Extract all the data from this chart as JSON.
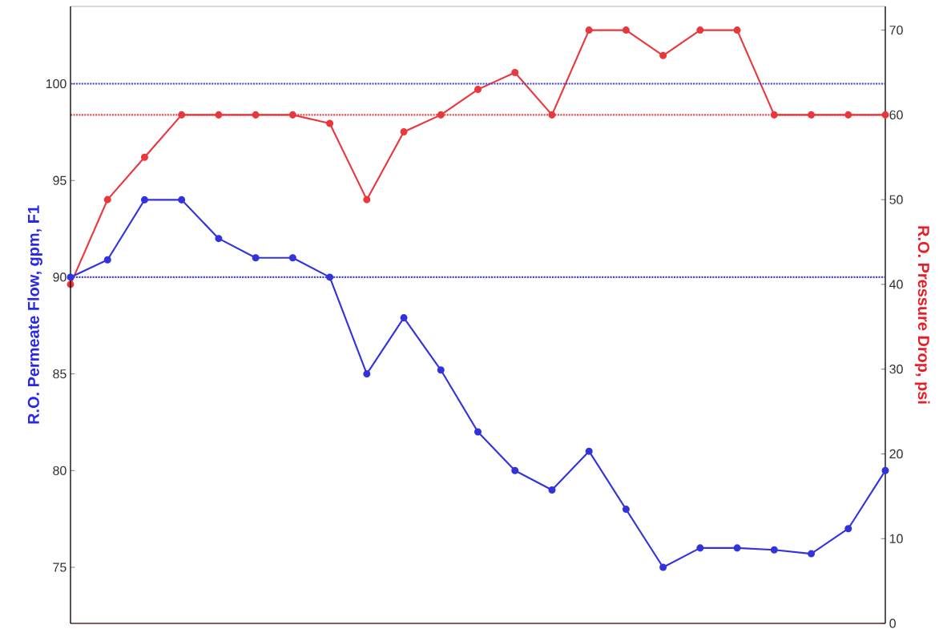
{
  "chart_data": {
    "type": "line",
    "ylabel": "R.O. Permeate Flow, gpm, F1",
    "y2label": "R.O. Pressure Drop, psi",
    "categories": [
      null,
      null,
      null,
      null,
      null,
      null,
      null,
      null,
      null,
      null,
      null,
      null,
      null,
      null,
      null,
      null,
      null,
      null,
      null,
      null,
      null,
      null,
      null
    ],
    "series": [
      {
        "color": "#3333dd",
        "values": [
          90,
          90.9,
          94,
          94,
          92,
          91,
          91,
          90,
          85,
          87.9,
          85.2,
          82,
          80,
          79,
          81,
          78,
          75,
          76,
          76,
          75.9,
          75.7,
          77,
          80
        ]
      },
      {
        "color": "#e8383d",
        "axis": "y2",
        "values": [
          40,
          50,
          55,
          60,
          60,
          60,
          60,
          59,
          50,
          58,
          60,
          63,
          65,
          60,
          70,
          70,
          67,
          70,
          70,
          60,
          60,
          60,
          60
        ]
      }
    ],
    "ylim": [
      72.1,
      104
    ],
    "yticks": [
      75,
      80,
      85,
      90,
      95,
      100
    ],
    "y2lim": [
      0,
      72.8
    ],
    "y2ticks": [
      0,
      10,
      20,
      30,
      40,
      50,
      60,
      70
    ],
    "ref_lines": [
      {
        "axis": "y",
        "value": 100,
        "color": "#4444cc",
        "line_style": "dotted"
      },
      {
        "axis": "y",
        "value": 90,
        "color": "#4444cc",
        "line_style": "dotted"
      },
      {
        "axis": "y2",
        "value": 60,
        "color": "#e05050",
        "line_style": "dotted"
      }
    ],
    "marker": "circle",
    "line_style": "solid",
    "tick_labels": "y"
  }
}
